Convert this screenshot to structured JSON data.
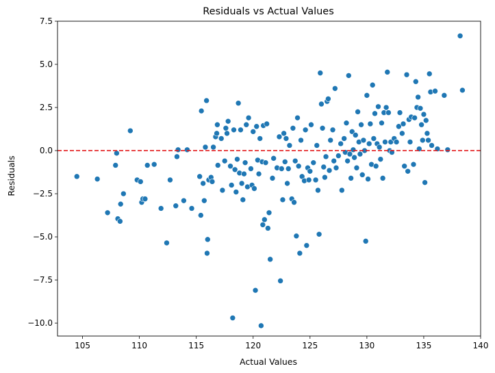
{
  "chart_data": {
    "type": "scatter",
    "title": "Residuals vs Actual Values",
    "xlabel": "Actual Values",
    "ylabel": "Residuals",
    "xlim": [
      102.8,
      140.0
    ],
    "ylim": [
      -10.75,
      7.5
    ],
    "xticks": [
      105,
      110,
      115,
      120,
      125,
      130,
      135,
      140
    ],
    "xtick_labels": [
      "105",
      "110",
      "115",
      "120",
      "125",
      "130",
      "135",
      "140"
    ],
    "yticks": [
      -10.0,
      -7.5,
      -5.0,
      -2.5,
      0.0,
      2.5,
      5.0,
      7.5
    ],
    "ytick_labels": [
      "−10.0",
      "−7.5",
      "−5.0",
      "−2.5",
      "0.0",
      "2.5",
      "5.0",
      "7.5"
    ],
    "grid": false,
    "reference_line": {
      "y": 0,
      "color": "#e31a1c",
      "style": "dashed"
    },
    "point_color": "#1f77b4",
    "points": [
      [
        104.5,
        -1.5
      ],
      [
        106.3,
        -1.65
      ],
      [
        107.2,
        -3.6
      ],
      [
        107.9,
        -0.85
      ],
      [
        108.0,
        -0.15
      ],
      [
        108.1,
        -3.95
      ],
      [
        108.3,
        -4.1
      ],
      [
        108.35,
        -3.1
      ],
      [
        108.6,
        -2.5
      ],
      [
        109.2,
        1.15
      ],
      [
        109.8,
        -1.7
      ],
      [
        110.1,
        -1.8
      ],
      [
        110.2,
        -3.0
      ],
      [
        110.3,
        -2.8
      ],
      [
        110.5,
        -2.8
      ],
      [
        110.7,
        -0.85
      ],
      [
        111.3,
        -0.8
      ],
      [
        111.9,
        -3.35
      ],
      [
        112.4,
        -5.35
      ],
      [
        112.7,
        -1.7
      ],
      [
        113.2,
        -3.2
      ],
      [
        113.3,
        -0.35
      ],
      [
        113.4,
        0.05
      ],
      [
        113.9,
        -2.9
      ],
      [
        114.2,
        0.05
      ],
      [
        114.6,
        -3.35
      ],
      [
        115.3,
        -1.5
      ],
      [
        115.4,
        -3.75
      ],
      [
        115.45,
        2.3
      ],
      [
        115.6,
        -1.9
      ],
      [
        115.7,
        -2.9
      ],
      [
        115.8,
        0.2
      ],
      [
        115.9,
        2.9
      ],
      [
        115.95,
        -5.95
      ],
      [
        116.0,
        -5.15
      ],
      [
        116.1,
        -1.7
      ],
      [
        116.3,
        -1.55
      ],
      [
        116.4,
        -1.8
      ],
      [
        116.5,
        0.2
      ],
      [
        116.7,
        0.8
      ],
      [
        116.8,
        1.0
      ],
      [
        116.85,
        1.5
      ],
      [
        116.9,
        -0.85
      ],
      [
        117.2,
        0.7
      ],
      [
        117.3,
        -2.3
      ],
      [
        117.5,
        -0.6
      ],
      [
        117.6,
        1.3
      ],
      [
        117.7,
        1.0
      ],
      [
        117.8,
        1.7
      ],
      [
        118.0,
        -0.9
      ],
      [
        118.1,
        -2.0
      ],
      [
        118.2,
        -9.7
      ],
      [
        118.3,
        1.2
      ],
      [
        118.4,
        -1.1
      ],
      [
        118.5,
        -2.4
      ],
      [
        118.6,
        -0.5
      ],
      [
        118.7,
        2.75
      ],
      [
        118.8,
        -1.3
      ],
      [
        118.9,
        1.2
      ],
      [
        119.0,
        -1.9
      ],
      [
        119.1,
        -2.85
      ],
      [
        119.2,
        -1.35
      ],
      [
        119.3,
        -0.7
      ],
      [
        119.4,
        1.5
      ],
      [
        119.5,
        -2.1
      ],
      [
        119.6,
        1.9
      ],
      [
        119.8,
        -1.05
      ],
      [
        119.9,
        -2.0
      ],
      [
        120.0,
        1.1
      ],
      [
        120.1,
        -2.2
      ],
      [
        120.2,
        -8.1
      ],
      [
        120.3,
        1.4
      ],
      [
        120.4,
        -0.55
      ],
      [
        120.5,
        -1.35
      ],
      [
        120.6,
        0.7
      ],
      [
        120.7,
        -10.15
      ],
      [
        120.8,
        -0.65
      ],
      [
        120.85,
        -4.3
      ],
      [
        120.9,
        1.45
      ],
      [
        121.0,
        -4.0
      ],
      [
        121.1,
        -0.7
      ],
      [
        121.2,
        1.55
      ],
      [
        121.3,
        -4.5
      ],
      [
        121.4,
        -3.6
      ],
      [
        121.5,
        -6.3
      ],
      [
        121.7,
        -1.6
      ],
      [
        121.8,
        -0.45
      ],
      [
        122.1,
        -1.0
      ],
      [
        122.3,
        0.8
      ],
      [
        122.4,
        -7.55
      ],
      [
        122.5,
        -1.05
      ],
      [
        122.6,
        -2.85
      ],
      [
        122.7,
        1.0
      ],
      [
        122.8,
        -0.65
      ],
      [
        122.9,
        0.7
      ],
      [
        123.0,
        -1.9
      ],
      [
        123.1,
        -1.05
      ],
      [
        123.2,
        0.3
      ],
      [
        123.4,
        -2.8
      ],
      [
        123.5,
        1.3
      ],
      [
        123.6,
        -3.0
      ],
      [
        123.7,
        -0.6
      ],
      [
        123.8,
        -4.95
      ],
      [
        123.9,
        1.9
      ],
      [
        124.0,
        -0.9
      ],
      [
        124.1,
        -5.95
      ],
      [
        124.2,
        0.6
      ],
      [
        124.3,
        -1.5
      ],
      [
        124.5,
        -1.75
      ],
      [
        124.6,
        1.2
      ],
      [
        124.7,
        -5.5
      ],
      [
        124.8,
        -1.0
      ],
      [
        124.9,
        -1.7
      ],
      [
        125.0,
        -1.2
      ],
      [
        125.1,
        1.5
      ],
      [
        125.3,
        -0.7
      ],
      [
        125.5,
        -1.7
      ],
      [
        125.6,
        0.3
      ],
      [
        125.7,
        -2.3
      ],
      [
        125.8,
        -4.85
      ],
      [
        125.9,
        4.5
      ],
      [
        126.0,
        2.7
      ],
      [
        126.1,
        1.3
      ],
      [
        126.2,
        -0.95
      ],
      [
        126.3,
        -1.55
      ],
      [
        126.4,
        -0.35
      ],
      [
        126.5,
        2.85
      ],
      [
        126.6,
        3.0
      ],
      [
        126.7,
        -1.15
      ],
      [
        126.8,
        0.6
      ],
      [
        127.0,
        1.2
      ],
      [
        127.1,
        -0.6
      ],
      [
        127.2,
        3.6
      ],
      [
        127.3,
        -1.0
      ],
      [
        127.5,
        -0.3
      ],
      [
        127.7,
        0.4
      ],
      [
        127.8,
        -2.3
      ],
      [
        128.0,
        0.7
      ],
      [
        128.1,
        -0.1
      ],
      [
        128.2,
        1.6
      ],
      [
        128.3,
        -0.6
      ],
      [
        128.4,
        4.35
      ],
      [
        128.5,
        -0.2
      ],
      [
        128.6,
        -1.6
      ],
      [
        128.7,
        1.1
      ],
      [
        128.8,
        0.05
      ],
      [
        128.9,
        -0.4
      ],
      [
        129.0,
        0.9
      ],
      [
        129.1,
        -1.0
      ],
      [
        129.2,
        2.25
      ],
      [
        129.3,
        0.5
      ],
      [
        129.4,
        -0.2
      ],
      [
        129.5,
        1.5
      ],
      [
        129.6,
        -1.4
      ],
      [
        129.7,
        0.6
      ],
      [
        129.8,
        0.0
      ],
      [
        129.9,
        -5.25
      ],
      [
        130.0,
        3.2
      ],
      [
        130.1,
        -1.65
      ],
      [
        130.2,
        0.4
      ],
      [
        130.3,
        1.55
      ],
      [
        130.4,
        -0.8
      ],
      [
        130.5,
        3.8
      ],
      [
        130.6,
        0.7
      ],
      [
        130.7,
        2.15
      ],
      [
        130.8,
        -0.9
      ],
      [
        130.9,
        0.4
      ],
      [
        131.0,
        2.55
      ],
      [
        131.1,
        0.2
      ],
      [
        131.2,
        -0.5
      ],
      [
        131.3,
        1.6
      ],
      [
        131.4,
        -1.6
      ],
      [
        131.5,
        2.2
      ],
      [
        131.6,
        0.5
      ],
      [
        131.7,
        2.5
      ],
      [
        131.8,
        4.55
      ],
      [
        131.9,
        2.2
      ],
      [
        132.0,
        0.0
      ],
      [
        132.1,
        0.5
      ],
      [
        132.2,
        -0.1
      ],
      [
        132.4,
        0.7
      ],
      [
        132.6,
        0.5
      ],
      [
        132.8,
        1.4
      ],
      [
        132.9,
        2.2
      ],
      [
        133.1,
        1.0
      ],
      [
        133.2,
        1.55
      ],
      [
        133.3,
        -0.9
      ],
      [
        133.5,
        4.4
      ],
      [
        133.6,
        -1.2
      ],
      [
        133.7,
        1.8
      ],
      [
        133.8,
        0.5
      ],
      [
        133.9,
        1.95
      ],
      [
        134.1,
        -0.8
      ],
      [
        134.2,
        1.9
      ],
      [
        134.3,
        4.0
      ],
      [
        134.4,
        2.5
      ],
      [
        134.5,
        3.1
      ],
      [
        134.6,
        0.1
      ],
      [
        134.7,
        2.45
      ],
      [
        134.8,
        1.5
      ],
      [
        134.9,
        0.6
      ],
      [
        135.0,
        2.1
      ],
      [
        135.1,
        -1.85
      ],
      [
        135.2,
        1.75
      ],
      [
        135.3,
        1.0
      ],
      [
        135.4,
        0.6
      ],
      [
        135.5,
        4.45
      ],
      [
        135.6,
        3.4
      ],
      [
        135.7,
        0.3
      ],
      [
        136.0,
        3.45
      ],
      [
        136.2,
        0.1
      ],
      [
        136.8,
        3.2
      ],
      [
        137.1,
        0.05
      ],
      [
        138.2,
        6.65
      ],
      [
        138.4,
        3.5
      ]
    ]
  }
}
